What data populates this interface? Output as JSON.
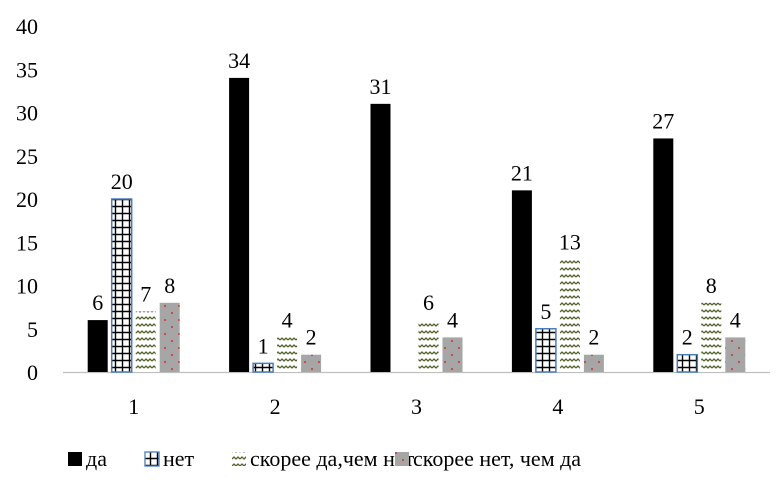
{
  "chart_data": {
    "type": "bar",
    "categories": [
      "1",
      "2",
      "3",
      "4",
      "5"
    ],
    "series": [
      {
        "name": "да",
        "values": [
          6,
          34,
          31,
          21,
          27
        ],
        "color": "#000000",
        "pattern": "solid"
      },
      {
        "name": "нет",
        "values": [
          20,
          1,
          0,
          5,
          2
        ],
        "color": "#4a7ebb",
        "pattern": "grid"
      },
      {
        "name": "скорее да,чем нет",
        "values": [
          7,
          4,
          6,
          13,
          8
        ],
        "color": "#4f6228",
        "pattern": "wave"
      },
      {
        "name": "скорее нет, чем да",
        "values": [
          8,
          2,
          4,
          2,
          4
        ],
        "color": "#a6a6a6",
        "pattern": "dots"
      }
    ],
    "data_labels": [
      [
        "6",
        "34",
        "31",
        "21",
        "27"
      ],
      [
        "20",
        "1",
        "",
        "5",
        "2"
      ],
      [
        "7",
        "4",
        "6",
        "13",
        "8"
      ],
      [
        "8",
        "2",
        "4",
        "2",
        "4"
      ]
    ],
    "yticks": [
      "0",
      "5",
      "10",
      "15",
      "20",
      "25",
      "30",
      "35",
      "40"
    ],
    "ylim": [
      0,
      40
    ],
    "grid": false,
    "legend_position": "bottom",
    "title": "",
    "xlabel": "",
    "ylabel": ""
  }
}
